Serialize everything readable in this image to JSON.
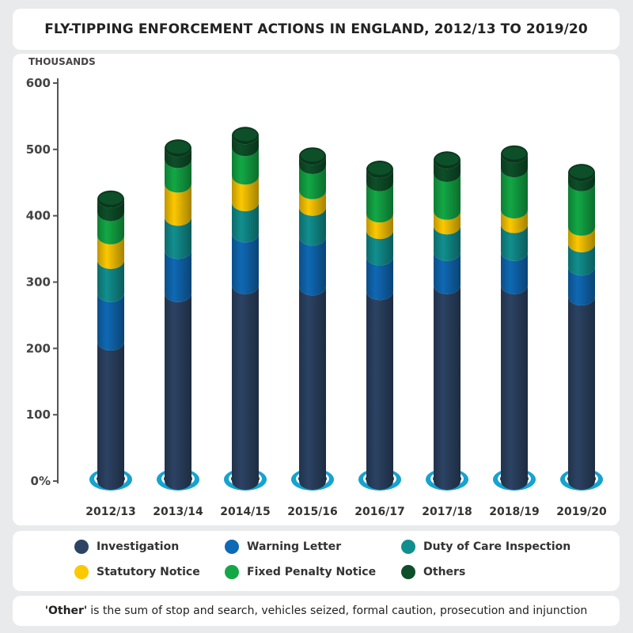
{
  "chart_data": {
    "type": "bar",
    "stacked": true,
    "title": "FLY-TIPPING ENFORCEMENT ACTIONS IN ENGLAND, 2012/13 TO 2019/20",
    "ylabel": "THOUSANDS",
    "ylim": [
      0,
      600
    ],
    "yticks": [
      "0%",
      "100",
      "200",
      "300",
      "400",
      "500",
      "600"
    ],
    "grid": false,
    "legend_position": "bottom",
    "categories": [
      "2012/13",
      "2013/14",
      "2014/15",
      "2015/16",
      "2016/17",
      "2017/18",
      "2018/19",
      "2019/20"
    ],
    "series": [
      {
        "name": "Investigation",
        "color": "#2c4364",
        "values": [
          210,
          283,
          295,
          293,
          286,
          295,
          295,
          278
        ]
      },
      {
        "name": "Warning Letter",
        "color": "#0f69b4",
        "values": [
          73,
          65,
          78,
          75,
          52,
          50,
          50,
          45
        ]
      },
      {
        "name": "Duty of Care Inspection",
        "color": "#118f8e",
        "values": [
          50,
          50,
          47,
          45,
          40,
          40,
          42,
          35
        ]
      },
      {
        "name": "Statutory Notice",
        "color": "#fcc800",
        "values": [
          37,
          50,
          40,
          25,
          25,
          22,
          22,
          25
        ]
      },
      {
        "name": "Fixed Penalty Notice",
        "color": "#13a845",
        "values": [
          35,
          37,
          43,
          38,
          47,
          57,
          62,
          67
        ]
      },
      {
        "name": "Others",
        "color": "#0d4f28",
        "values": [
          20,
          17,
          18,
          14,
          20,
          20,
          22,
          15
        ]
      }
    ]
  },
  "note": {
    "lead": "'Other'",
    "text": "is the sum of stop and search, vehicles seized, formal caution, prosecution and injunction"
  }
}
